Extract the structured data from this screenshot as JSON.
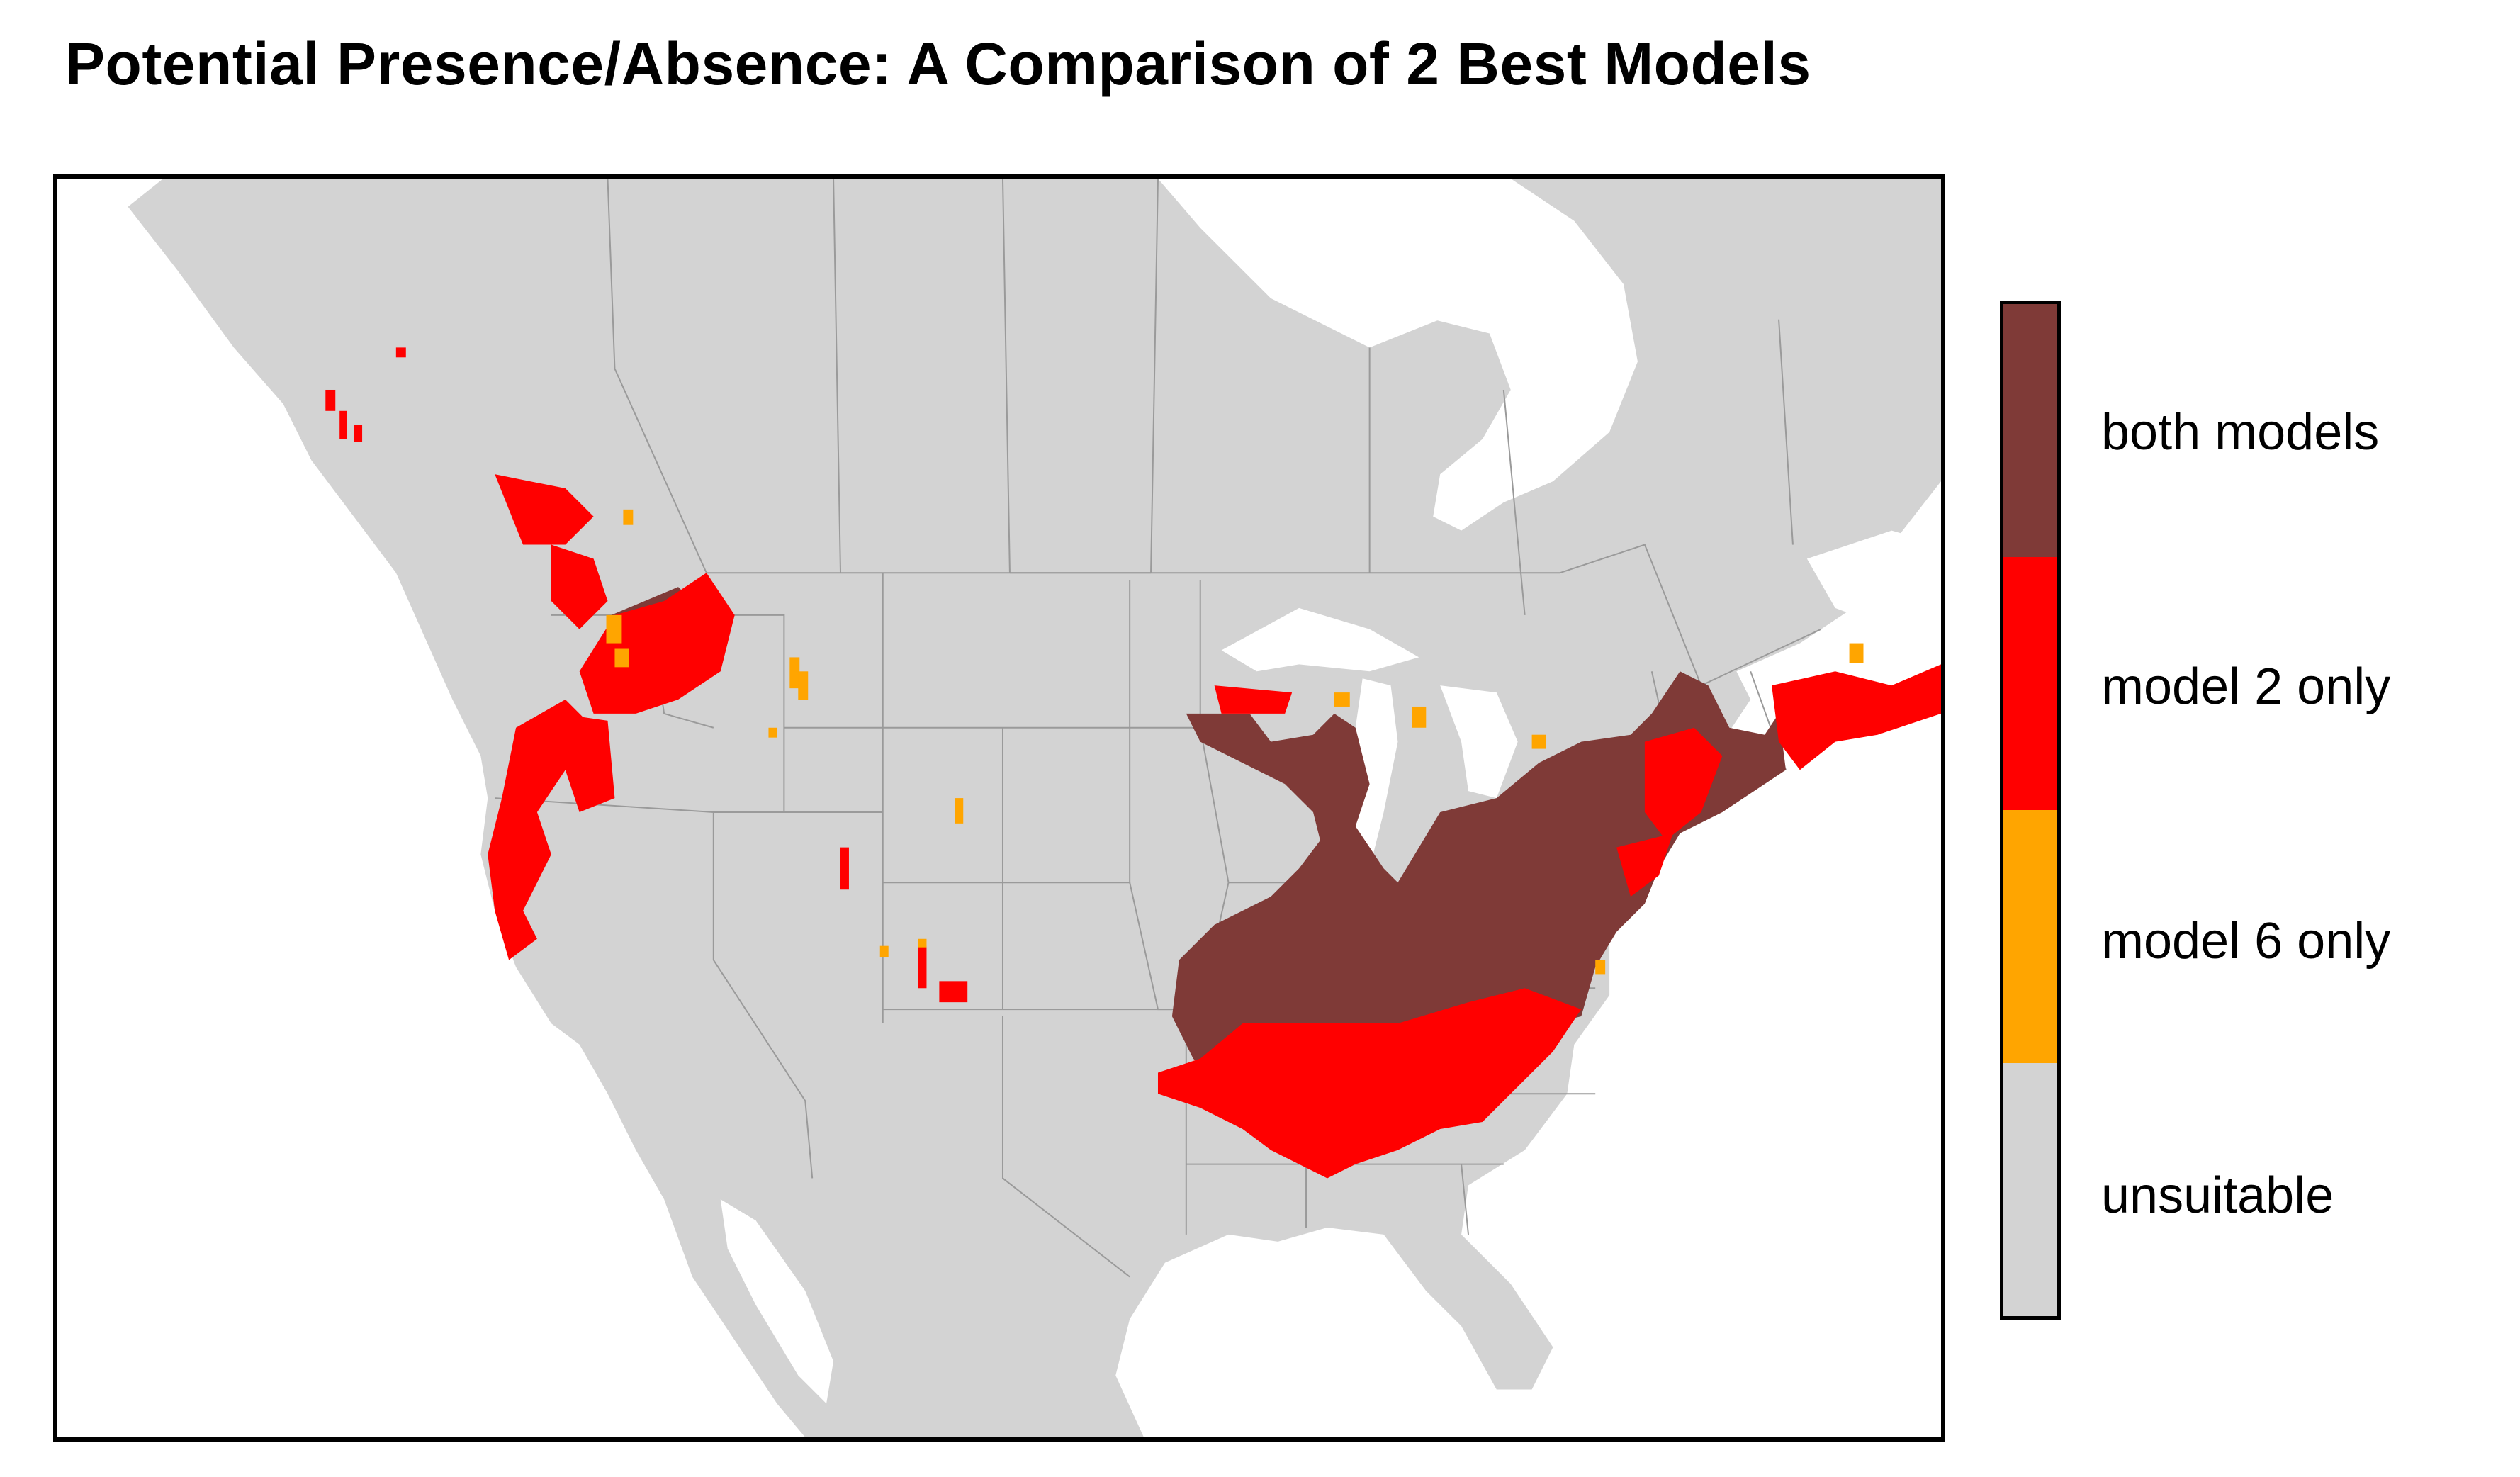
{
  "title": "Potential Presence/Absence: A Comparison of 2 Best Models",
  "colors": {
    "land": "#d3d3d3",
    "water": "#ffffff",
    "borders": "#9a9a9a",
    "both_models": "#7f3a37",
    "model2_only": "#ff0000",
    "model6_only": "#ffa500",
    "unsuitable": "#d3d3d3"
  },
  "legend": {
    "items": [
      {
        "label": "both models",
        "color": "#7f3a37"
      },
      {
        "label": "model 2 only",
        "color": "#ff0000"
      },
      {
        "label": "model 6 only",
        "color": "#ffa500"
      },
      {
        "label": "unsuitable",
        "color": "#d3d3d3"
      }
    ]
  }
}
